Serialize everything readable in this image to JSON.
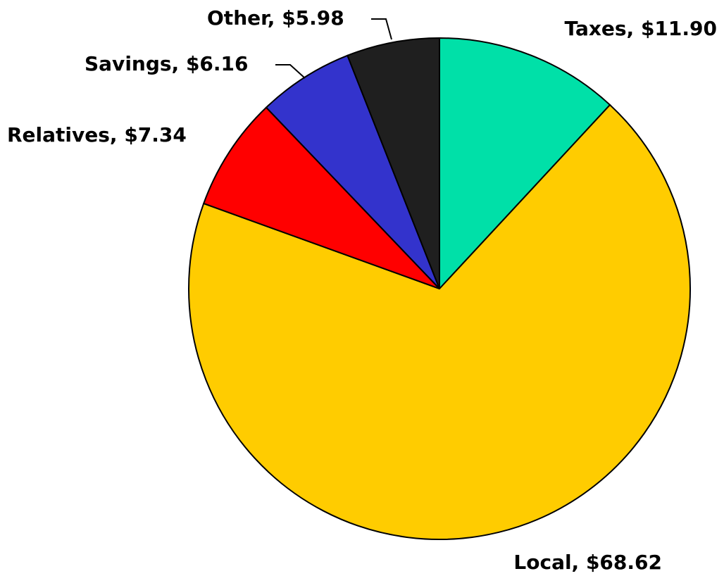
{
  "chart_data": {
    "type": "pie",
    "values": [
      11.9,
      68.62,
      7.34,
      6.16,
      5.98
    ],
    "value_labels": [
      "Taxes, $11.90",
      "Local, $68.62",
      "Relatives, $7.34",
      "Savings, $6.16",
      "Other, $5.98"
    ],
    "colors": [
      "#00e0a8",
      "#ffcc00",
      "#ff0000",
      "#3333cc",
      "#1f1f1f"
    ]
  }
}
